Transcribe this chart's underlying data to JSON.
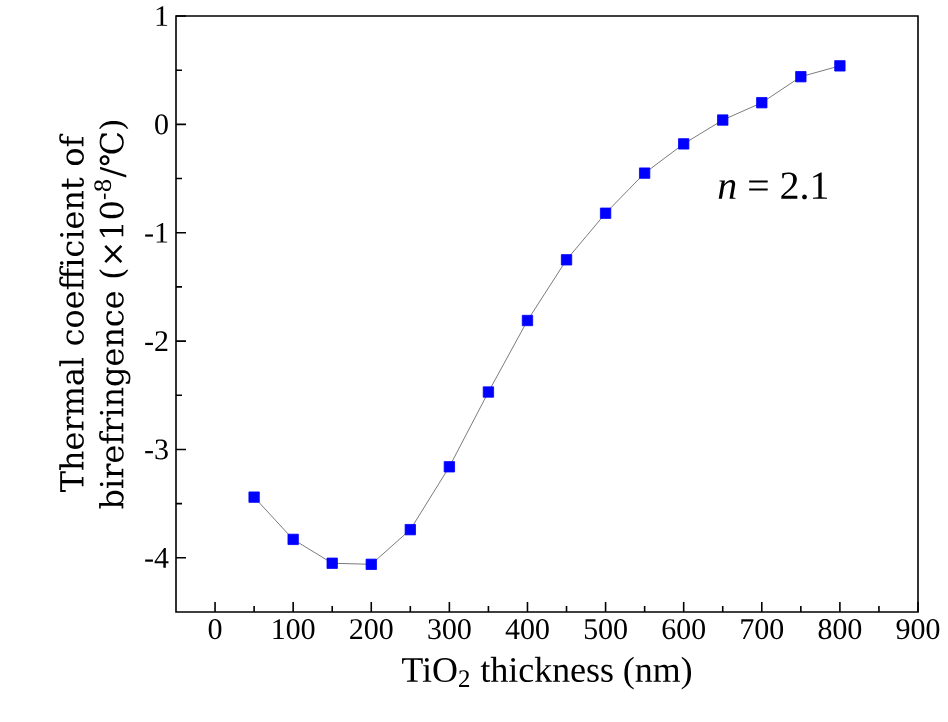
{
  "chart_data": {
    "type": "line",
    "xlabel": "TiO$_{2}$ thickness (nm)",
    "ylabel": "Thermal coefficient of birefringence (×10$^{-8}$/℃)",
    "annotations": [
      "*n* = 2.1"
    ],
    "x": [
      50,
      100,
      150,
      200,
      250,
      300,
      350,
      400,
      450,
      500,
      550,
      600,
      650,
      700,
      750,
      800
    ],
    "series": [
      {
        "color": "#0000ff",
        "values": [
          -3.44,
          -3.83,
          -4.05,
          -4.06,
          -3.74,
          -3.16,
          -2.47,
          -1.81,
          -1.25,
          -0.82,
          -0.45,
          -0.18,
          0.04,
          0.2,
          0.44,
          0.54
        ]
      }
    ],
    "xlim": [
      -50,
      900
    ],
    "ylim": [
      -4.5,
      1
    ],
    "xticks": [
      0,
      100,
      200,
      300,
      400,
      500,
      600,
      700,
      800,
      900
    ],
    "yticks": [
      -4,
      -3,
      -2,
      -1,
      0,
      1
    ],
    "marker": "square",
    "line_style": "solid"
  }
}
